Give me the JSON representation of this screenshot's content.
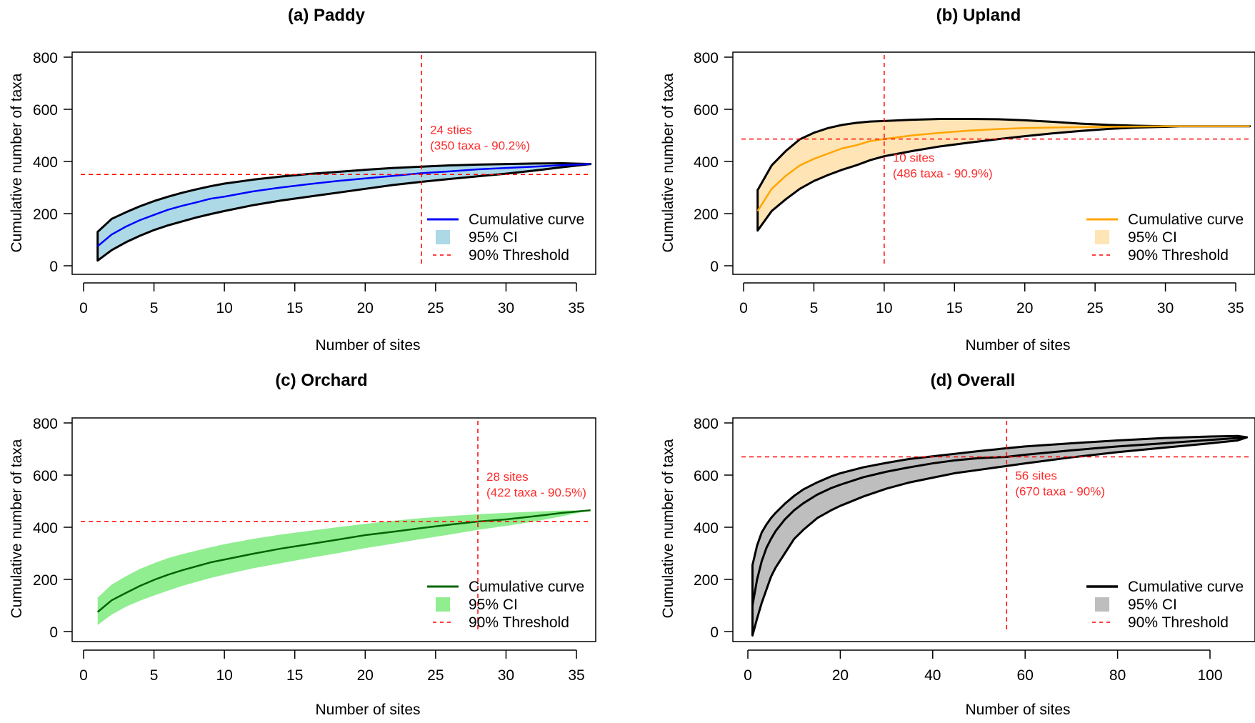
{
  "chart_data": [
    {
      "type": "area",
      "id": "paddy",
      "title": "(a) Paddy",
      "xlabel": "Number of sites",
      "ylabel": "Cumulative number of taxa",
      "xlim": [
        0,
        37
      ],
      "ylim": [
        0,
        800
      ],
      "xticks": [
        0,
        5,
        10,
        15,
        20,
        25,
        30,
        35
      ],
      "yticks": [
        0,
        200,
        400,
        600,
        800
      ],
      "grid": false,
      "legend_position": "bottom-right",
      "colors": {
        "line": "#0000ff",
        "ci_fill": "#add8e6",
        "ci_border": "#000000",
        "threshold": "#ff0000"
      },
      "ci_border": true,
      "x": [
        1,
        2,
        3,
        4,
        5,
        6,
        7,
        8,
        9,
        10,
        12,
        14,
        16,
        18,
        20,
        22,
        24,
        26,
        28,
        30,
        32,
        34,
        36
      ],
      "mean": [
        75,
        120,
        150,
        175,
        195,
        215,
        230,
        243,
        257,
        265,
        285,
        300,
        313,
        325,
        335,
        345,
        355,
        362,
        370,
        375,
        380,
        386,
        390
      ],
      "upper": [
        130,
        180,
        205,
        228,
        248,
        265,
        280,
        293,
        305,
        315,
        330,
        342,
        352,
        360,
        368,
        375,
        380,
        385,
        388,
        390,
        392,
        393,
        390
      ],
      "lower": [
        20,
        60,
        90,
        115,
        137,
        155,
        170,
        185,
        198,
        210,
        232,
        250,
        265,
        280,
        295,
        310,
        322,
        333,
        343,
        353,
        365,
        378,
        390
      ],
      "threshold": {
        "x": 24,
        "y": 350
      },
      "annotation": [
        "24 sties",
        "(350 taxa - 90.2%)"
      ],
      "legend": [
        "Cumulative curve",
        "95% CI",
        "90% Threshold"
      ]
    },
    {
      "type": "area",
      "id": "upland",
      "title": "(b) Upland",
      "xlabel": "Number of sites",
      "ylabel": "Cumulative number of taxa",
      "xlim": [
        0,
        37
      ],
      "ylim": [
        0,
        800
      ],
      "xticks": [
        0,
        5,
        10,
        15,
        20,
        25,
        30,
        35
      ],
      "yticks": [
        0,
        200,
        400,
        600,
        800
      ],
      "grid": false,
      "legend_position": "bottom-right",
      "colors": {
        "line": "#ffa500",
        "ci_fill": "#ffe4b5",
        "ci_border": "#000000",
        "threshold": "#ff0000"
      },
      "ci_border": true,
      "x": [
        1,
        2,
        3,
        4,
        5,
        6,
        7,
        8,
        9,
        10,
        12,
        14,
        16,
        18,
        20,
        22,
        24,
        26,
        28,
        30,
        31,
        33,
        36
      ],
      "mean": [
        210,
        295,
        345,
        385,
        410,
        430,
        450,
        462,
        478,
        486,
        500,
        510,
        518,
        524,
        528,
        530,
        532,
        533,
        534,
        535,
        535,
        535,
        535
      ],
      "upper": [
        290,
        385,
        440,
        485,
        510,
        528,
        540,
        548,
        553,
        555,
        560,
        563,
        563,
        562,
        558,
        552,
        545,
        540,
        537,
        535,
        535,
        535,
        535
      ],
      "lower": [
        135,
        210,
        255,
        295,
        325,
        348,
        368,
        385,
        405,
        420,
        440,
        458,
        472,
        485,
        497,
        508,
        517,
        525,
        530,
        533,
        535,
        535,
        535
      ],
      "threshold": {
        "x": 10,
        "y": 486
      },
      "annotation": [
        "10 sites",
        "(486 taxa - 90.9%)"
      ],
      "legend": [
        "Cumulative curve",
        "95% CI",
        "90% Threshold"
      ]
    },
    {
      "type": "area",
      "id": "orchard",
      "title": "(c) Orchard",
      "xlabel": "Number of sites",
      "ylabel": "Cumulative number of taxa",
      "xlim": [
        0,
        37
      ],
      "ylim": [
        0,
        800
      ],
      "xticks": [
        0,
        5,
        10,
        15,
        20,
        25,
        30,
        35
      ],
      "yticks": [
        0,
        200,
        400,
        600,
        800
      ],
      "grid": false,
      "legend_position": "bottom-right",
      "colors": {
        "line": "#006400",
        "ci_fill": "#90ee90",
        "ci_border": "none",
        "threshold": "#ff0000"
      },
      "ci_border": false,
      "x": [
        1,
        2,
        3,
        4,
        5,
        6,
        7,
        8,
        9,
        10,
        12,
        14,
        16,
        18,
        20,
        22,
        24,
        26,
        28,
        30,
        32,
        34,
        36
      ],
      "mean": [
        75,
        120,
        148,
        175,
        198,
        218,
        235,
        250,
        265,
        276,
        298,
        318,
        335,
        352,
        370,
        383,
        397,
        410,
        422,
        430,
        442,
        455,
        465
      ],
      "upper": [
        130,
        180,
        212,
        240,
        262,
        282,
        297,
        310,
        323,
        335,
        355,
        372,
        386,
        400,
        413,
        425,
        435,
        443,
        450,
        455,
        460,
        464,
        465
      ],
      "lower": [
        25,
        65,
        95,
        118,
        138,
        157,
        175,
        190,
        205,
        218,
        242,
        262,
        282,
        300,
        320,
        337,
        355,
        372,
        390,
        405,
        422,
        442,
        465
      ],
      "threshold": {
        "x": 28,
        "y": 422
      },
      "annotation": [
        "28 sites",
        "(422 taxa - 90.5%)"
      ],
      "legend": [
        "Cumulative curve",
        "95% CI",
        "90% Threshold"
      ]
    },
    {
      "type": "area",
      "id": "overall",
      "title": "(d) Overall",
      "xlabel": "Number of sites",
      "ylabel": "Cumulative number of taxa",
      "xlim": [
        -3,
        112
      ],
      "ylim": [
        0,
        800
      ],
      "xticks": [
        0,
        20,
        40,
        60,
        80,
        100
      ],
      "yticks": [
        0,
        200,
        400,
        600,
        800
      ],
      "grid": false,
      "legend_position": "bottom-right",
      "colors": {
        "line": "#000000",
        "ci_fill": "#bebebe",
        "ci_border": "#000000",
        "threshold": "#ff0000"
      },
      "ci_border": true,
      "x": [
        1,
        2,
        3,
        4,
        5,
        6,
        8,
        10,
        12,
        15,
        18,
        20,
        25,
        30,
        35,
        40,
        45,
        50,
        56,
        60,
        70,
        80,
        90,
        100,
        106,
        108
      ],
      "mean": [
        100,
        200,
        270,
        320,
        355,
        385,
        430,
        465,
        492,
        525,
        550,
        563,
        592,
        613,
        630,
        645,
        657,
        665,
        670,
        678,
        695,
        710,
        722,
        735,
        742,
        745
      ],
      "upper": [
        255,
        330,
        380,
        410,
        435,
        455,
        490,
        520,
        545,
        572,
        595,
        607,
        630,
        647,
        662,
        672,
        682,
        692,
        703,
        710,
        722,
        733,
        742,
        748,
        750,
        745
      ],
      "lower": [
        -15,
        50,
        110,
        160,
        210,
        245,
        300,
        355,
        390,
        435,
        465,
        482,
        518,
        548,
        572,
        590,
        608,
        620,
        635,
        645,
        668,
        688,
        705,
        722,
        733,
        745
      ],
      "threshold": {
        "x": 56,
        "y": 670
      },
      "annotation": [
        "56 sites",
        "(670 taxa - 90%)"
      ],
      "legend": [
        "Cumulative curve",
        "95% CI",
        "90% Threshold"
      ]
    }
  ]
}
